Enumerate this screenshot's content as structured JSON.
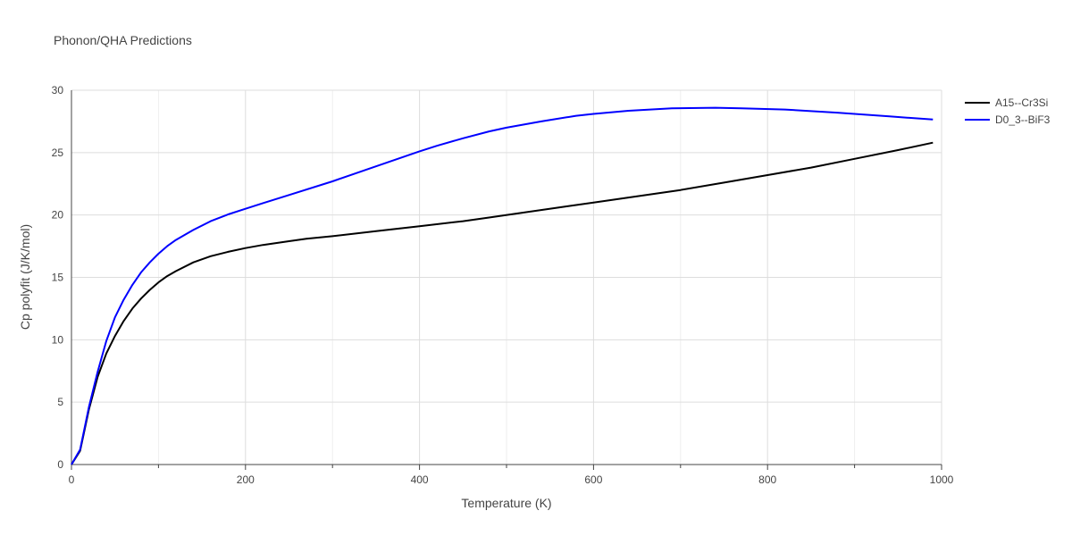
{
  "chart_data": {
    "type": "line",
    "title": "Phonon/QHA Predictions",
    "xlabel": "Temperature (K)",
    "ylabel": "Cp polyfit (J/K/mol)",
    "xlim": [
      0,
      1000
    ],
    "ylim": [
      0,
      30
    ],
    "xticks": [
      0,
      200,
      400,
      600,
      800,
      1000
    ],
    "yticks": [
      0,
      5,
      10,
      15,
      20,
      25,
      30
    ],
    "grid": true,
    "legend_position": "top-right",
    "series": [
      {
        "name": "A15--Cr3Si",
        "color": "#000000",
        "x": [
          0,
          10,
          20,
          30,
          40,
          50,
          60,
          70,
          80,
          90,
          100,
          110,
          120,
          140,
          160,
          180,
          200,
          220,
          250,
          270,
          300,
          350,
          400,
          450,
          480,
          520,
          570,
          600,
          650,
          700,
          750,
          800,
          850,
          900,
          950,
          990
        ],
        "y": [
          0,
          1.1,
          4.4,
          7.0,
          8.9,
          10.3,
          11.5,
          12.5,
          13.3,
          14.0,
          14.6,
          15.1,
          15.5,
          16.2,
          16.7,
          17.05,
          17.35,
          17.6,
          17.9,
          18.1,
          18.3,
          18.7,
          19.1,
          19.5,
          19.8,
          20.2,
          20.7,
          21.0,
          21.5,
          22.0,
          22.6,
          23.2,
          23.8,
          24.5,
          25.2,
          25.8
        ]
      },
      {
        "name": "D0_3--BiF3",
        "color": "#0000ff",
        "x": [
          0,
          10,
          20,
          30,
          40,
          50,
          60,
          70,
          80,
          90,
          100,
          110,
          120,
          140,
          160,
          180,
          200,
          220,
          250,
          300,
          350,
          400,
          420,
          450,
          480,
          500,
          540,
          580,
          600,
          640,
          690,
          740,
          770,
          820,
          880,
          940,
          990
        ],
        "y": [
          0,
          1.2,
          4.6,
          7.4,
          9.9,
          11.8,
          13.2,
          14.4,
          15.4,
          16.2,
          16.9,
          17.5,
          18.0,
          18.8,
          19.5,
          20.05,
          20.5,
          20.95,
          21.6,
          22.7,
          23.9,
          25.1,
          25.55,
          26.15,
          26.7,
          27.0,
          27.5,
          27.95,
          28.1,
          28.35,
          28.55,
          28.6,
          28.55,
          28.45,
          28.2,
          27.9,
          27.65
        ]
      }
    ]
  }
}
